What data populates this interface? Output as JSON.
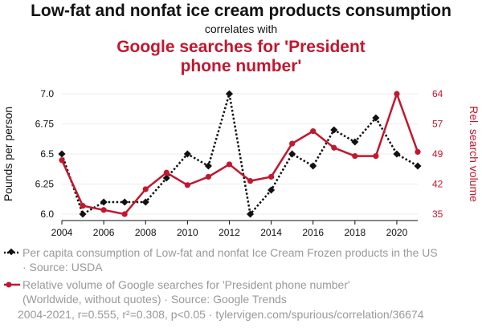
{
  "header": {
    "title": "Low-fat and nonfat ice cream products consumption",
    "subtitle": "correlates with",
    "title2_line1": "Google searches for 'President",
    "title2_line2": "phone number'"
  },
  "colors": {
    "series1": "#111111",
    "series2": "#c0182f",
    "muted": "#999999"
  },
  "legend": {
    "series1_line1": "Per capita consumption of Low-fat and nonfat Ice Cream Frozen products in the US",
    "series1_line2": "· Source: USDA",
    "series2_line1": "Relative volume of Google searches for 'President phone number'",
    "series2_line2": "(Worldwide, without quotes) · Source: Google Trends"
  },
  "footer": "2004-2021, r=0.555, r²=0.308, p<0.05 · tylervigen.com/spurious/correlation/36674",
  "chart_data": {
    "type": "line",
    "x": [
      2004,
      2005,
      2006,
      2007,
      2008,
      2009,
      2010,
      2011,
      2012,
      2013,
      2014,
      2015,
      2016,
      2017,
      2018,
      2019,
      2020,
      2021
    ],
    "xticks": [
      "2004",
      "2006",
      "2008",
      "2010",
      "2012",
      "2014",
      "2016",
      "2018",
      "2020"
    ],
    "xlim": [
      2004,
      2021
    ],
    "ylabel_left": "Pounds per person",
    "ylabel_right": "Rel. search volume",
    "yticks_left": [
      "6.0",
      "6.25",
      "6.5",
      "6.75",
      "7.0"
    ],
    "yticks_right": [
      "35",
      "42",
      "49",
      "57",
      "64"
    ],
    "ylim_left": [
      6.0,
      7.0
    ],
    "ylim_right": [
      35,
      64
    ],
    "series": [
      {
        "axis": "left",
        "style": "dotted",
        "marker": "diamond",
        "values": [
          6.5,
          6.0,
          6.1,
          6.1,
          6.1,
          6.3,
          6.5,
          6.4,
          7.0,
          6.0,
          6.2,
          6.5,
          6.4,
          6.7,
          6.6,
          6.8,
          6.5,
          6.4
        ]
      },
      {
        "axis": "right",
        "style": "solid",
        "marker": "circle",
        "values": [
          48,
          37,
          36,
          35,
          41,
          45,
          42,
          44,
          47,
          43,
          44,
          52,
          55,
          51,
          49,
          49,
          64,
          50
        ]
      }
    ],
    "grid": true
  }
}
